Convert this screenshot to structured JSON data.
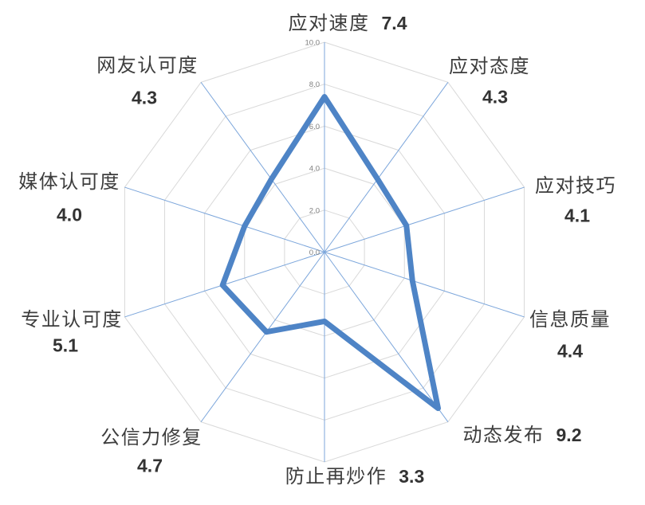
{
  "chart_data": {
    "type": "radar",
    "title": "",
    "categories": [
      "应对速度",
      "应对态度",
      "应对技巧",
      "信息质量",
      "动态发布",
      "防止再炒作",
      "公信力修复",
      "专业认可度",
      "媒体认可度",
      "网友认可度"
    ],
    "values": [
      7.4,
      4.3,
      4.1,
      4.4,
      9.2,
      3.3,
      4.7,
      5.1,
      4.0,
      4.3
    ],
    "value_labels": [
      "7.4",
      "4.3",
      "4.1",
      "4.4",
      "9.2",
      "3.3",
      "4.7",
      "5.1",
      "4.0",
      "4.3"
    ],
    "axis": {
      "min": 0,
      "max": 10,
      "step": 2,
      "tick_labels": [
        "0.0",
        "2.0",
        "4.0",
        "6.0",
        "8.0",
        "10.0"
      ]
    },
    "legend": "none",
    "grid": true,
    "colors": {
      "series_line": "#4E84C6",
      "radial_axis": "#7CA6DB",
      "grid_ring": "#D9D9D9",
      "category_text": "#3D3D3D",
      "value_text": "#333333",
      "tick_text": "#7F7F7F",
      "background": "#FFFFFF"
    }
  }
}
